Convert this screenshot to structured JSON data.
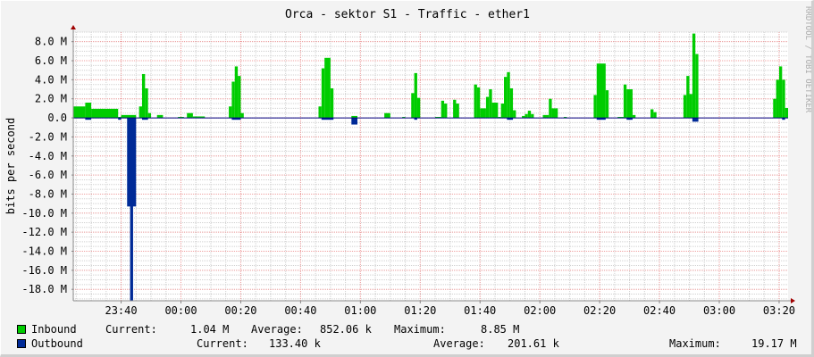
{
  "chart_data": {
    "type": "area",
    "title": "Orca - sektor S1 - Traffic - ether1",
    "ylabel": "bits per second",
    "watermark": "RRDTOOL / TOBI OETIKER",
    "xlim": [
      "23:24",
      "03:23"
    ],
    "ylim": [
      -19.2,
      9.0
    ],
    "y_unit": "M",
    "grid": true,
    "x_major_step_min": 20,
    "x_minor_step_min": 5,
    "y_major_step": 2,
    "y_minor_step": 0.5,
    "x_ticks": [
      "23:40",
      "00:00",
      "00:20",
      "00:40",
      "01:00",
      "01:20",
      "01:40",
      "02:00",
      "02:20",
      "02:40",
      "03:00",
      "03:20"
    ],
    "y_ticks": [
      "8.0 M",
      "6.0 M",
      "4.0 M",
      "2.0 M",
      "0.0",
      "-2.0 M",
      "-4.0 M",
      "-6.0 M",
      "-8.0 M",
      "-10.0 M",
      "-12.0 M",
      "-14.0 M",
      "-16.0 M",
      "-18.0 M"
    ],
    "y_tick_values": [
      8,
      6,
      4,
      2,
      0,
      -2,
      -4,
      -6,
      -8,
      -10,
      -12,
      -14,
      -16,
      -18
    ],
    "colors": {
      "inbound": "#00cc00",
      "outbound": "#002a97",
      "major_grid": "#f0a0a0",
      "minor_grid": "#d0d0d0",
      "arrow": "#a00000",
      "zero_line": "#000080"
    },
    "series": [
      {
        "name": "Inbound",
        "color": "#00cc00",
        "segments": [
          [
            "23:24",
            "23:28",
            1.2
          ],
          [
            "23:28",
            "23:30",
            1.6
          ],
          [
            "23:30",
            "23:39",
            0.95
          ],
          [
            "23:39",
            "23:40",
            0.1
          ],
          [
            "23:40",
            "23:45",
            0.3
          ],
          [
            "23:46",
            "23:47",
            1.2
          ],
          [
            "23:47",
            "23:48",
            4.6
          ],
          [
            "23:48",
            "23:49",
            3.1
          ],
          [
            "23:49",
            "23:50",
            0.5
          ],
          [
            "23:52",
            "23:54",
            0.3
          ],
          [
            "23:59",
            "00:01",
            0.1
          ],
          [
            "00:02",
            "00:04",
            0.5
          ],
          [
            "00:04",
            "00:08",
            0.15
          ],
          [
            "00:16",
            "00:17",
            1.2
          ],
          [
            "00:17",
            "00:18",
            3.8
          ],
          [
            "00:18",
            "00:19",
            5.4
          ],
          [
            "00:19",
            "00:20",
            4.4
          ],
          [
            "00:20",
            "00:21",
            0.5
          ],
          [
            "00:46",
            "00:47",
            1.2
          ],
          [
            "00:47",
            "00:48",
            5.2
          ],
          [
            "00:48",
            "00:50",
            6.3
          ],
          [
            "00:50",
            "00:51",
            3.1
          ],
          [
            "00:57",
            "00:59",
            0.2
          ],
          [
            "01:08",
            "01:10",
            0.5
          ],
          [
            "01:14",
            "01:15",
            0.1
          ],
          [
            "01:17",
            "01:18",
            2.6
          ],
          [
            "01:18",
            "01:19",
            4.7
          ],
          [
            "01:19",
            "01:20",
            2.1
          ],
          [
            "01:25",
            "01:27",
            0.1
          ],
          [
            "01:27",
            "01:28",
            1.8
          ],
          [
            "01:28",
            "01:29",
            1.5
          ],
          [
            "01:31",
            "01:32",
            1.9
          ],
          [
            "01:32",
            "01:33",
            1.5
          ],
          [
            "01:38",
            "01:39",
            3.5
          ],
          [
            "01:39",
            "01:40",
            3.2
          ],
          [
            "01:40",
            "01:42",
            1.0
          ],
          [
            "01:42",
            "01:43",
            2.2
          ],
          [
            "01:43",
            "01:44",
            3.0
          ],
          [
            "01:44",
            "01:46",
            1.6
          ],
          [
            "01:46",
            "01:47",
            0.1
          ],
          [
            "01:47",
            "01:48",
            1.5
          ],
          [
            "01:48",
            "01:49",
            4.3
          ],
          [
            "01:49",
            "01:50",
            4.8
          ],
          [
            "01:50",
            "01:51",
            3.1
          ],
          [
            "01:51",
            "01:52",
            0.8
          ],
          [
            "01:54",
            "01:55",
            0.2
          ],
          [
            "01:55",
            "01:56",
            0.4
          ],
          [
            "01:56",
            "01:57",
            0.75
          ],
          [
            "01:57",
            "01:58",
            0.4
          ],
          [
            "02:01",
            "02:03",
            0.3
          ],
          [
            "02:03",
            "02:04",
            2.0
          ],
          [
            "02:04",
            "02:06",
            1.0
          ],
          [
            "02:08",
            "02:09",
            0.1
          ],
          [
            "02:18",
            "02:19",
            2.4
          ],
          [
            "02:19",
            "02:22",
            5.7
          ],
          [
            "02:22",
            "02:23",
            2.9
          ],
          [
            "02:26",
            "02:28",
            0.1
          ],
          [
            "02:28",
            "02:29",
            3.5
          ],
          [
            "02:29",
            "02:31",
            3.0
          ],
          [
            "02:31",
            "02:32",
            0.3
          ],
          [
            "02:37",
            "02:38",
            0.9
          ],
          [
            "02:38",
            "02:39",
            0.6
          ],
          [
            "02:48",
            "02:49",
            2.4
          ],
          [
            "02:49",
            "02:50",
            4.4
          ],
          [
            "02:50",
            "02:51",
            2.5
          ],
          [
            "02:51",
            "02:52",
            8.85
          ],
          [
            "02:52",
            "02:53",
            6.7
          ],
          [
            "03:18",
            "03:19",
            2.0
          ],
          [
            "03:19",
            "03:20",
            4.0
          ],
          [
            "03:20",
            "03:21",
            5.4
          ],
          [
            "03:21",
            "03:22",
            4.0
          ],
          [
            "03:22",
            "03:23",
            1.04
          ]
        ]
      },
      {
        "name": "Outbound",
        "color": "#002a97",
        "segments": [
          [
            "23:28",
            "23:30",
            -0.2
          ],
          [
            "23:39",
            "23:40",
            -0.2
          ],
          [
            "23:42",
            "23:45",
            -9.3
          ],
          [
            "23:43",
            "23:44",
            -19.17
          ],
          [
            "23:47",
            "23:49",
            -0.2
          ],
          [
            "00:17",
            "00:20",
            -0.2
          ],
          [
            "00:47",
            "00:51",
            -0.2
          ],
          [
            "00:57",
            "00:59",
            -0.7
          ],
          [
            "01:18",
            "01:19",
            -0.2
          ],
          [
            "01:49",
            "01:51",
            -0.2
          ],
          [
            "02:19",
            "02:22",
            -0.2
          ],
          [
            "02:29",
            "02:31",
            -0.2
          ],
          [
            "02:51",
            "02:53",
            -0.4
          ],
          [
            "03:21",
            "03:22",
            -0.2
          ]
        ]
      }
    ]
  },
  "legend": {
    "inbound": {
      "label": "Inbound",
      "current_label": "Current:",
      "current": "1.04 M",
      "average_label": "Average:",
      "average": "852.06 k",
      "maximum_label": "Maximum:",
      "maximum": "8.85 M"
    },
    "outbound": {
      "label": "Outbound",
      "current_label": "Current:",
      "current": "133.40 k",
      "average_label": "Average:",
      "average": "201.61 k",
      "maximum_label": "Maximum:",
      "maximum": "19.17 M"
    }
  }
}
